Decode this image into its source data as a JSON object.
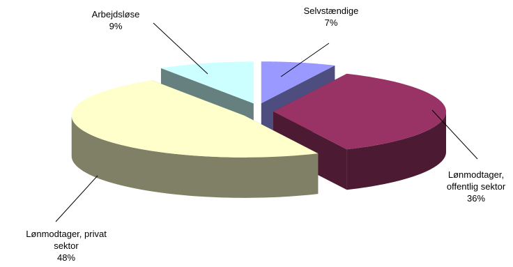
{
  "chart_data": {
    "type": "pie",
    "style": "3d-exploded",
    "title": "",
    "slices": [
      {
        "label_lines": [
          "Selvstændige"
        ],
        "value": 7,
        "value_label": "7%",
        "top_color": "#9999ff",
        "side_color": "#4d4d80"
      },
      {
        "label_lines": [
          "Lønmodtager,",
          "offentlig sektor"
        ],
        "value": 36,
        "value_label": "36%",
        "top_color": "#993366",
        "side_color": "#4d1a33"
      },
      {
        "label_lines": [
          "Lønmodtager, privat",
          "sektor"
        ],
        "value": 48,
        "value_label": "48%",
        "top_color": "#ffffcc",
        "side_color": "#808066"
      },
      {
        "label_lines": [
          "Arbejdsløse"
        ],
        "value": 9,
        "value_label": "9%",
        "top_color": "#ccffff",
        "side_color": "#668080"
      }
    ],
    "legend": "none"
  }
}
